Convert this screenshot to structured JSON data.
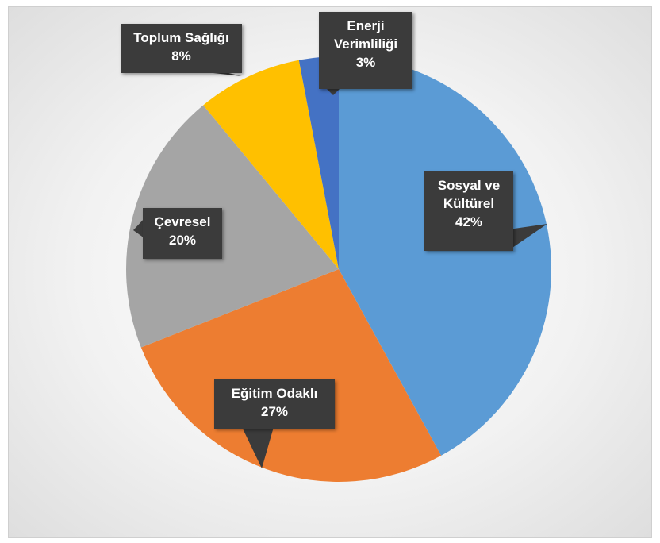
{
  "chart_data": {
    "type": "pie",
    "categories": [
      "Sosyal ve Kültürel",
      "Eğitim Odaklı",
      "Çevresel",
      "Toplum Sağlığı",
      "Enerji Verimliliği"
    ],
    "values": [
      42,
      27,
      20,
      8,
      3
    ],
    "value_labels": [
      "42%",
      "27%",
      "20%",
      "8%",
      "3%"
    ],
    "colors": [
      "#5b9bd5",
      "#ed7d31",
      "#a5a5a5",
      "#ffc000",
      "#4472c4"
    ]
  }
}
